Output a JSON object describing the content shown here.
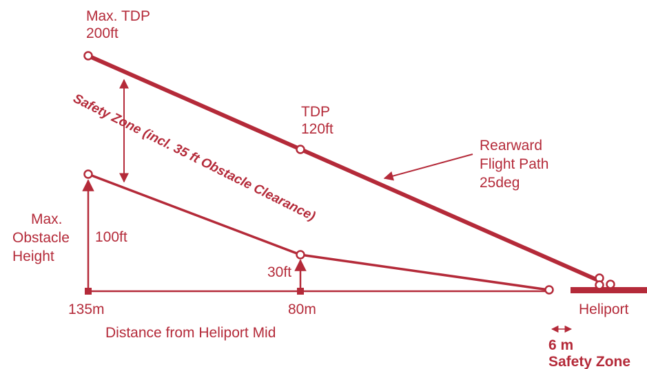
{
  "colors": {
    "ink": "#b42a39"
  },
  "labels": {
    "max_tdp_line1": "Max. TDP",
    "max_tdp_line2": "200ft",
    "tdp_line1": "TDP",
    "tdp_line2": "120ft",
    "rearward_line1": "Rearward",
    "rearward_line2": "Flight Path",
    "rearward_line3": "25deg",
    "safety_zone_diag": "Safety Zone (incl. 35 ft Obstacle Clearance)",
    "max_obstacle_line1": "Max.",
    "max_obstacle_line2": "Obstacle",
    "max_obstacle_line3": "Height",
    "height_100": "100ft",
    "height_30": "30ft",
    "dist_135": "135m",
    "dist_80": "80m",
    "heliport": "Heliport",
    "axis_title": "Distance from Heliport Mid",
    "safety_6m_line1": "6 m",
    "safety_6m_line2": "Safety Zone"
  }
}
